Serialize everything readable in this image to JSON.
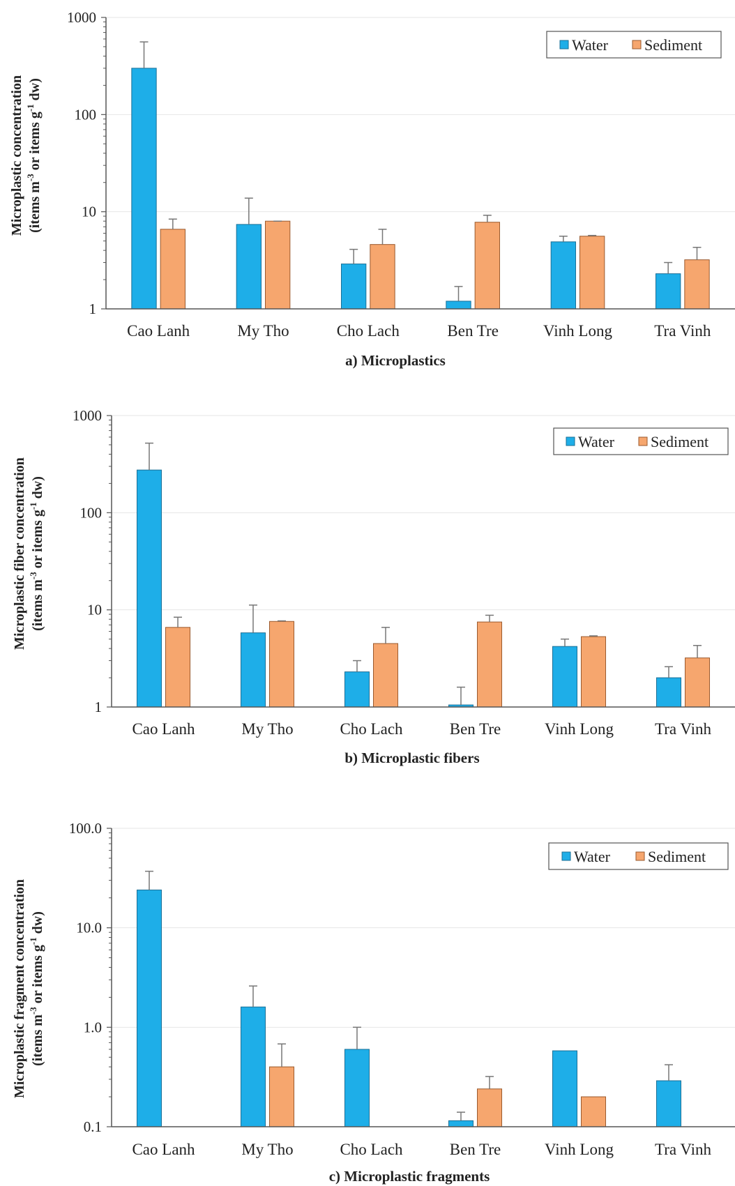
{
  "chart_data": [
    {
      "type": "bar",
      "caption": "a) Microplastics",
      "ylabel_line1": "Microplastic concentration",
      "ylabel_line2": "(items m",
      "ylabel_sup1": "-3",
      "ylabel_mid": " or items g",
      "ylabel_sup2": "-1",
      "ylabel_end": " dw)",
      "ytick_labels": [
        "1",
        "10",
        "100",
        "1000"
      ],
      "ylim": [
        1,
        1000
      ],
      "yscale": "log",
      "categories": [
        "Cao Lanh",
        "My Tho",
        "Cho Lach",
        "Ben Tre",
        "Vinh Long",
        "Tra Vinh"
      ],
      "series": [
        {
          "name": "Water",
          "values": [
            300,
            7.4,
            2.9,
            1.2,
            4.9,
            2.3
          ],
          "errors": [
            560,
            13.8,
            4.1,
            1.7,
            5.6,
            3.0
          ]
        },
        {
          "name": "Sediment",
          "values": [
            6.6,
            8.0,
            4.6,
            7.8,
            5.6,
            3.2
          ],
          "errors": [
            8.4,
            8.0,
            6.6,
            9.2,
            5.7,
            4.3
          ]
        }
      ],
      "legend": "top-right",
      "grid": true
    },
    {
      "type": "bar",
      "caption": "b) Microplastic fibers",
      "ylabel_line1": "Microplastic fiber concentration",
      "ylabel_line2": "(items m",
      "ylabel_sup1": "-3",
      "ylabel_mid": " or items g",
      "ylabel_sup2": "-1",
      "ylabel_end": " dw)",
      "ytick_labels": [
        "1",
        "10",
        "100",
        "1000"
      ],
      "ylim": [
        1,
        1000
      ],
      "yscale": "log",
      "categories": [
        "Cao Lanh",
        "My Tho",
        "Cho Lach",
        "Ben Tre",
        "Vinh Long",
        "Tra Vinh"
      ],
      "series": [
        {
          "name": "Water",
          "values": [
            275,
            5.8,
            2.3,
            1.05,
            4.2,
            2.0
          ],
          "errors": [
            520,
            11.2,
            3.0,
            1.6,
            5.0,
            2.6
          ]
        },
        {
          "name": "Sediment",
          "values": [
            6.6,
            7.6,
            4.5,
            7.5,
            5.3,
            3.2
          ],
          "errors": [
            8.4,
            7.7,
            6.6,
            8.8,
            5.4,
            4.3
          ]
        }
      ],
      "legend": "top-right",
      "grid": true
    },
    {
      "type": "bar",
      "caption": "c) Microplastic fragments",
      "ylabel_line1": "Microplastic fragment concentration",
      "ylabel_line2": "(items m",
      "ylabel_sup1": "-3",
      "ylabel_mid": " or items g",
      "ylabel_sup2": "-1",
      "ylabel_end": " dw)",
      "ytick_labels": [
        "0.1",
        "1.0",
        "10.0",
        "100.0"
      ],
      "ylim": [
        0.1,
        100
      ],
      "yscale": "log",
      "categories": [
        "Cao Lanh",
        "My Tho",
        "Cho Lach",
        "Ben Tre",
        "Vinh Long",
        "Tra Vinh"
      ],
      "series": [
        {
          "name": "Water",
          "values": [
            24,
            1.6,
            0.6,
            0.115,
            0.58,
            0.29
          ],
          "errors": [
            37,
            2.6,
            1.0,
            0.14,
            null,
            0.42
          ]
        },
        {
          "name": "Sediment",
          "values": [
            null,
            0.4,
            null,
            0.24,
            0.2,
            null
          ],
          "errors": [
            null,
            0.68,
            null,
            0.32,
            null,
            null
          ]
        }
      ],
      "legend": "top-right",
      "grid": true
    }
  ],
  "colors": {
    "water": "#1eaee8",
    "sediment": "#f6a66e",
    "axis": "#555555",
    "grid": "#e6e6e6"
  }
}
